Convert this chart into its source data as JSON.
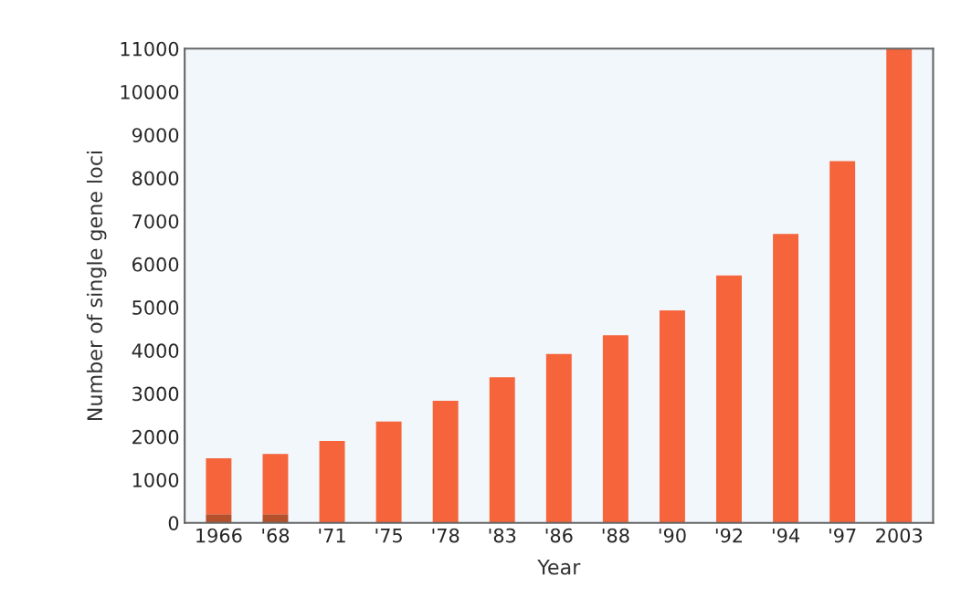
{
  "chart_data": {
    "type": "bar",
    "stacked": true,
    "xlabel": "Year",
    "ylabel": "Number of single gene loci",
    "categories": [
      "1966",
      "'68",
      "'71",
      "'75",
      "'78",
      "'83",
      "'86",
      "'88",
      "'90",
      "'92",
      "'94",
      "'97",
      "2003"
    ],
    "series": [
      {
        "color": "#b4502c",
        "values": [
          200,
          200,
          null,
          null,
          null,
          null,
          null,
          null,
          null,
          null,
          null,
          null,
          null
        ]
      },
      {
        "color": "#f5643a",
        "values": [
          1300,
          1400,
          1900,
          2350,
          2830,
          3380,
          3920,
          4350,
          4930,
          5740,
          6700,
          8390,
          11000
        ]
      }
    ],
    "ylim": [
      0,
      11000
    ],
    "yticks": [
      0,
      1000,
      2000,
      3000,
      4000,
      5000,
      6000,
      7000,
      8000,
      9000,
      10000,
      11000
    ],
    "grid": false
  }
}
